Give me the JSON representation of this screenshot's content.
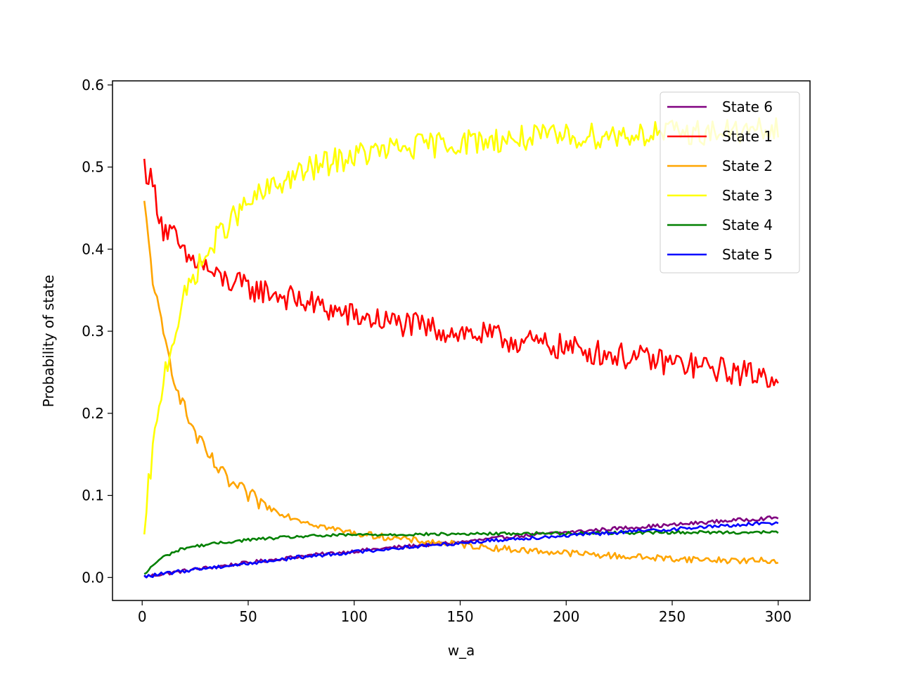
{
  "chart_data": {
    "type": "line",
    "title": "",
    "xlabel": "w_a",
    "ylabel": "Probability of state",
    "xlim": [
      -14,
      315
    ],
    "ylim": [
      -0.028,
      0.605
    ],
    "xticks": [
      0,
      50,
      100,
      150,
      200,
      250,
      300
    ],
    "yticks": [
      0.0,
      0.1,
      0.2,
      0.3,
      0.4,
      0.5,
      0.6
    ],
    "ytick_labels": [
      "0.0",
      "0.1",
      "0.2",
      "0.3",
      "0.4",
      "0.5",
      "0.6"
    ],
    "grid": false,
    "legend_position": "top-right",
    "x_range": [
      1,
      300
    ],
    "series": [
      {
        "name": "State 6",
        "color": "#800080",
        "points": [
          [
            1,
            0.001
          ],
          [
            25,
            0.01
          ],
          [
            50,
            0.018
          ],
          [
            75,
            0.026
          ],
          [
            100,
            0.032
          ],
          [
            125,
            0.038
          ],
          [
            150,
            0.043
          ],
          [
            175,
            0.05
          ],
          [
            200,
            0.055
          ],
          [
            225,
            0.06
          ],
          [
            250,
            0.064
          ],
          [
            275,
            0.069
          ],
          [
            300,
            0.073
          ]
        ]
      },
      {
        "name": "State 1",
        "color": "#ff0000",
        "points": [
          [
            1,
            0.502
          ],
          [
            5,
            0.478
          ],
          [
            10,
            0.425
          ],
          [
            15,
            0.415
          ],
          [
            20,
            0.39
          ],
          [
            25,
            0.385
          ],
          [
            30,
            0.378
          ],
          [
            35,
            0.365
          ],
          [
            40,
            0.362
          ],
          [
            50,
            0.352
          ],
          [
            60,
            0.348
          ],
          [
            70,
            0.34
          ],
          [
            80,
            0.333
          ],
          [
            90,
            0.325
          ],
          [
            100,
            0.318
          ],
          [
            120,
            0.31
          ],
          [
            140,
            0.302
          ],
          [
            160,
            0.295
          ],
          [
            180,
            0.287
          ],
          [
            200,
            0.28
          ],
          [
            220,
            0.272
          ],
          [
            240,
            0.265
          ],
          [
            260,
            0.258
          ],
          [
            280,
            0.25
          ],
          [
            300,
            0.245
          ]
        ]
      },
      {
        "name": "State 2",
        "color": "#ffa500",
        "points": [
          [
            1,
            0.453
          ],
          [
            3,
            0.41
          ],
          [
            5,
            0.365
          ],
          [
            8,
            0.32
          ],
          [
            10,
            0.295
          ],
          [
            15,
            0.245
          ],
          [
            20,
            0.205
          ],
          [
            25,
            0.175
          ],
          [
            30,
            0.152
          ],
          [
            35,
            0.135
          ],
          [
            40,
            0.118
          ],
          [
            50,
            0.1
          ],
          [
            60,
            0.085
          ],
          [
            70,
            0.074
          ],
          [
            80,
            0.066
          ],
          [
            90,
            0.059
          ],
          [
            100,
            0.054
          ],
          [
            125,
            0.046
          ],
          [
            150,
            0.04
          ],
          [
            175,
            0.034
          ],
          [
            200,
            0.03
          ],
          [
            225,
            0.026
          ],
          [
            250,
            0.023
          ],
          [
            275,
            0.021
          ],
          [
            300,
            0.02
          ]
        ]
      },
      {
        "name": "State 3",
        "color": "#ffff00",
        "points": [
          [
            1,
            0.042
          ],
          [
            3,
            0.11
          ],
          [
            5,
            0.155
          ],
          [
            8,
            0.2
          ],
          [
            10,
            0.245
          ],
          [
            15,
            0.295
          ],
          [
            20,
            0.34
          ],
          [
            25,
            0.372
          ],
          [
            30,
            0.39
          ],
          [
            35,
            0.412
          ],
          [
            40,
            0.43
          ],
          [
            50,
            0.455
          ],
          [
            60,
            0.473
          ],
          [
            70,
            0.487
          ],
          [
            80,
            0.498
          ],
          [
            90,
            0.507
          ],
          [
            100,
            0.514
          ],
          [
            120,
            0.522
          ],
          [
            140,
            0.528
          ],
          [
            160,
            0.532
          ],
          [
            180,
            0.535
          ],
          [
            200,
            0.537
          ],
          [
            220,
            0.539
          ],
          [
            240,
            0.541
          ],
          [
            260,
            0.542
          ],
          [
            280,
            0.543
          ],
          [
            300,
            0.544
          ]
        ]
      },
      {
        "name": "State 4",
        "color": "#008000",
        "points": [
          [
            1,
            0.003
          ],
          [
            5,
            0.015
          ],
          [
            10,
            0.025
          ],
          [
            15,
            0.031
          ],
          [
            20,
            0.036
          ],
          [
            30,
            0.04
          ],
          [
            40,
            0.043
          ],
          [
            50,
            0.046
          ],
          [
            75,
            0.05
          ],
          [
            100,
            0.052
          ],
          [
            150,
            0.053
          ],
          [
            200,
            0.054
          ],
          [
            250,
            0.055
          ],
          [
            300,
            0.055
          ]
        ]
      },
      {
        "name": "State 5",
        "color": "#0000ff",
        "points": [
          [
            1,
            0.001
          ],
          [
            25,
            0.01
          ],
          [
            50,
            0.017
          ],
          [
            75,
            0.025
          ],
          [
            100,
            0.031
          ],
          [
            125,
            0.037
          ],
          [
            150,
            0.042
          ],
          [
            175,
            0.047
          ],
          [
            200,
            0.051
          ],
          [
            225,
            0.055
          ],
          [
            250,
            0.059
          ],
          [
            275,
            0.063
          ],
          [
            300,
            0.067
          ]
        ]
      }
    ]
  }
}
